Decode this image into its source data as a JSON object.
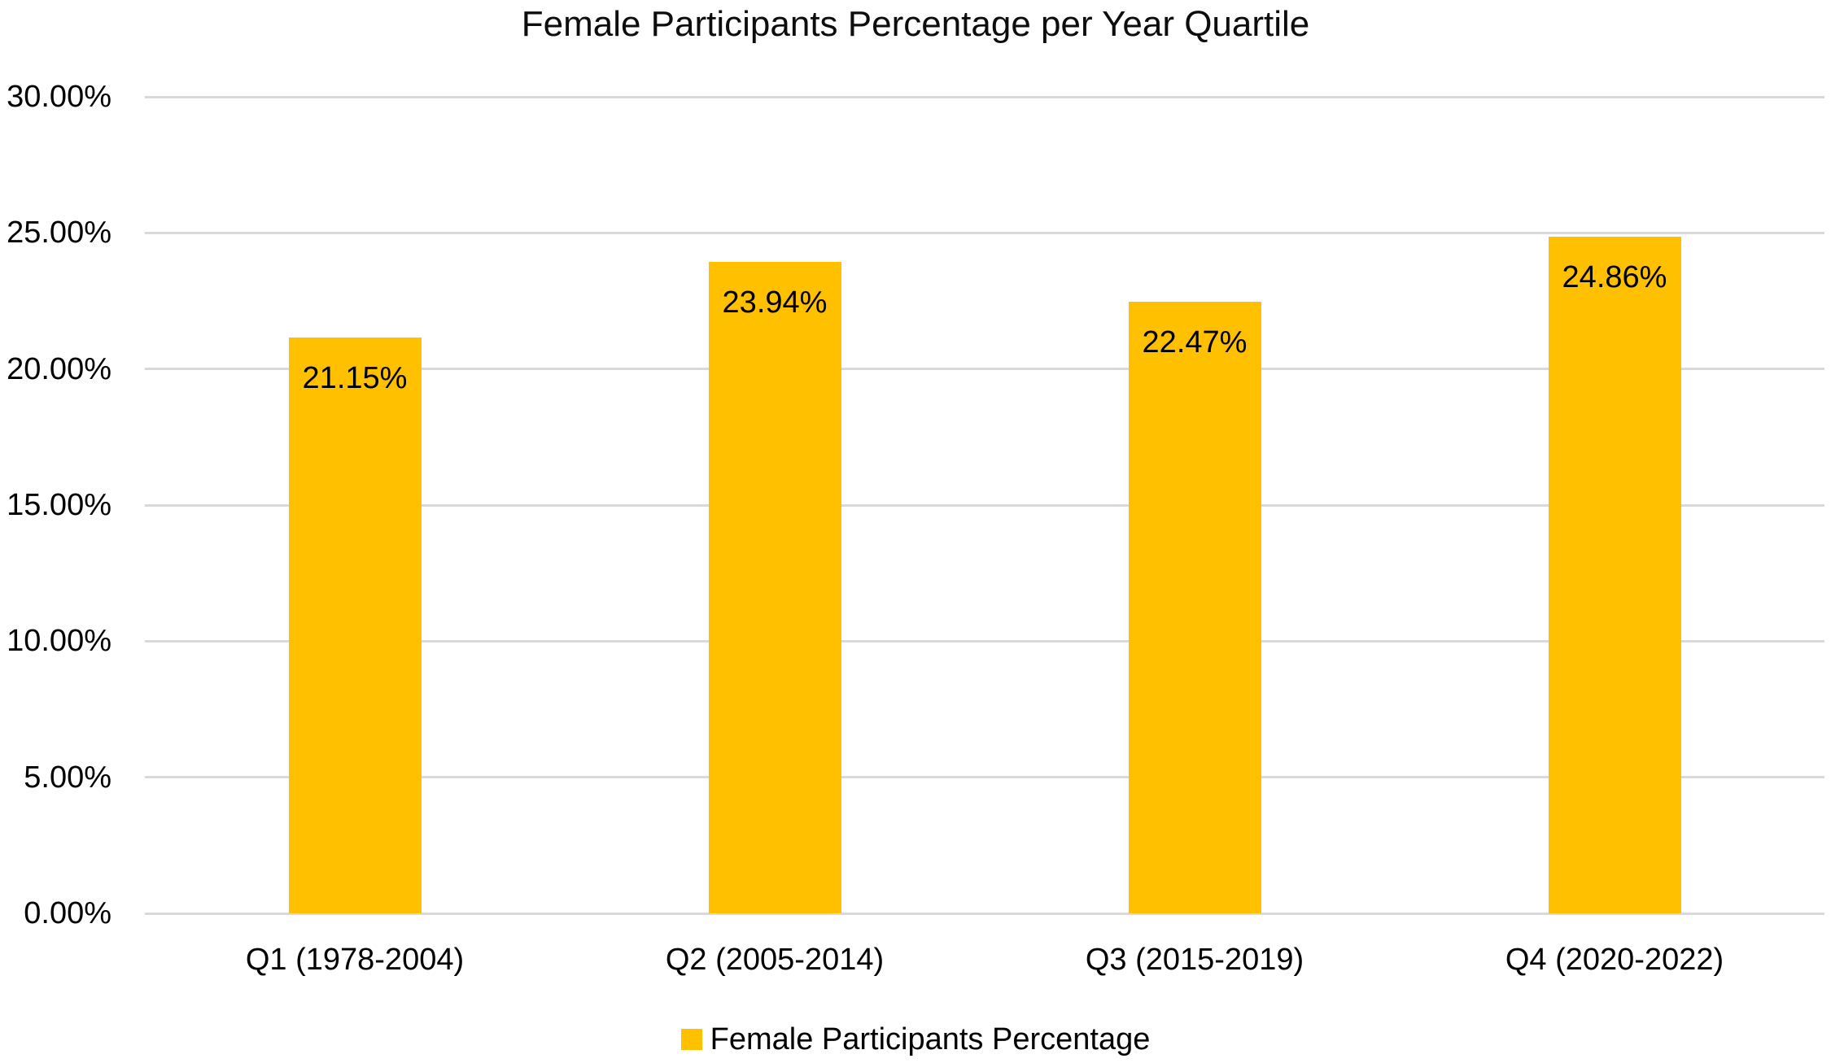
{
  "chart_data": {
    "type": "bar",
    "title": "Female Participants Percentage per Year Quartile",
    "categories": [
      "Q1 (1978-2004)",
      "Q2 (2005-2014)",
      "Q3 (2015-2019)",
      "Q4 (2020-2022)"
    ],
    "series": [
      {
        "name": "Female Participants Percentage",
        "values": [
          21.15,
          23.94,
          22.47,
          24.86
        ]
      }
    ],
    "data_labels": [
      "21.15%",
      "23.94%",
      "22.47%",
      "24.86%"
    ],
    "y_ticks": [
      {
        "value": 0,
        "label": "0.00%"
      },
      {
        "value": 5,
        "label": "5.00%"
      },
      {
        "value": 10,
        "label": "10.00%"
      },
      {
        "value": 15,
        "label": "15.00%"
      },
      {
        "value": 20,
        "label": "20.00%"
      },
      {
        "value": 25,
        "label": "25.00%"
      },
      {
        "value": 30,
        "label": "30.00%"
      }
    ],
    "ylim": [
      0,
      30
    ],
    "grid": true,
    "legend_position": "bottom",
    "legend_label": "Female Participants Percentage",
    "colors": {
      "bar": "#FFC000",
      "gridline": "#D9D9D9",
      "text": "#000000",
      "background": "#FFFFFF"
    }
  }
}
